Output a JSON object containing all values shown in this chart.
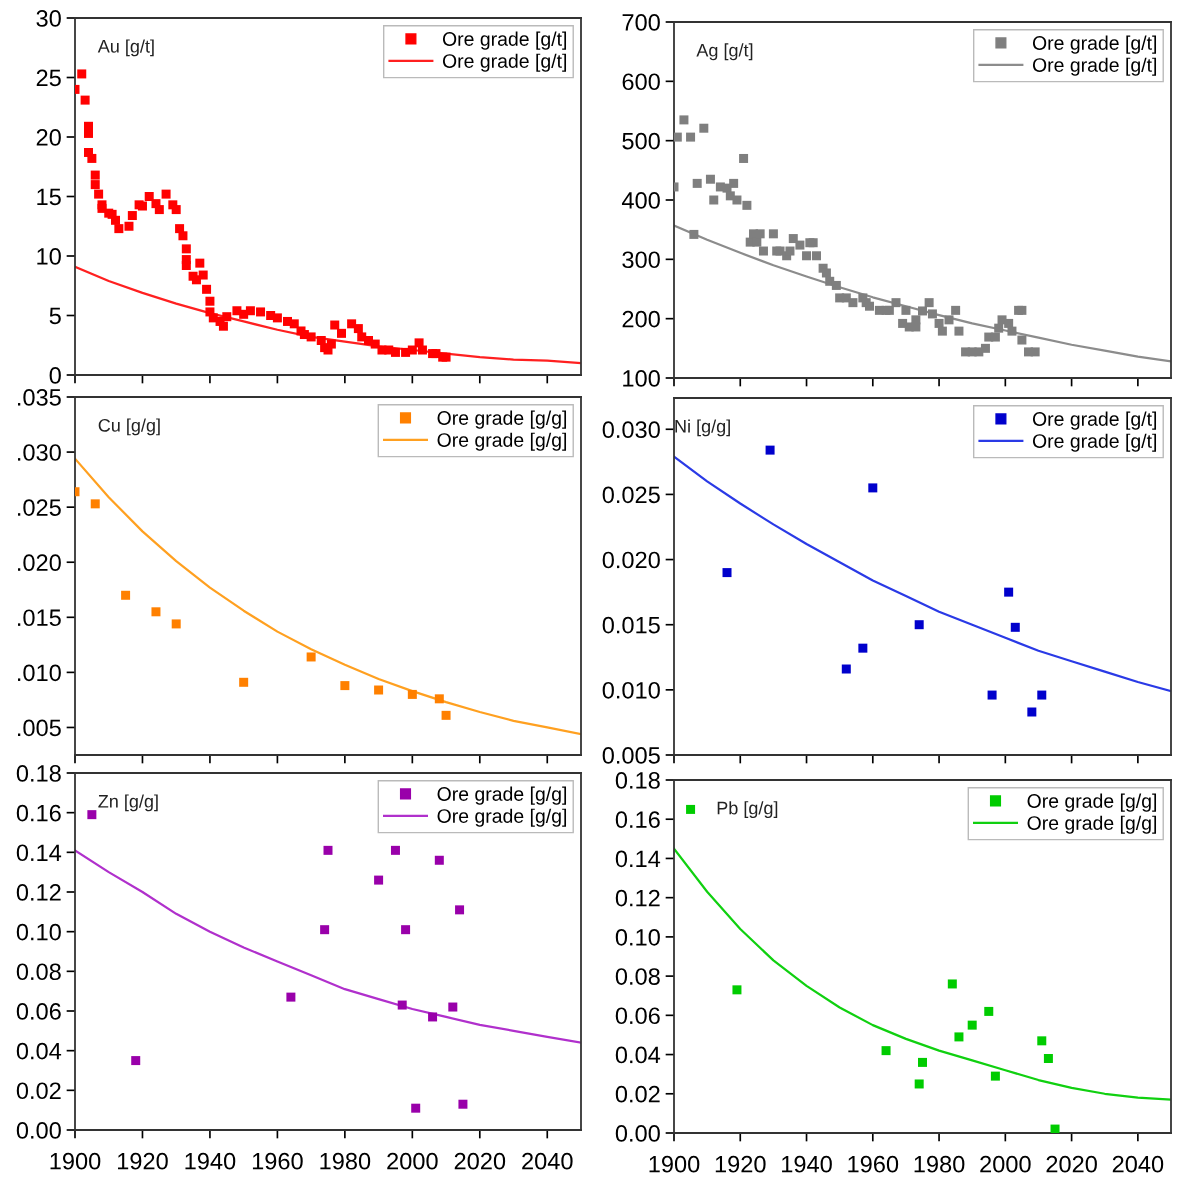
{
  "chart_data": [
    {
      "type": "scatter",
      "title": "Au [g/t]",
      "xlim": [
        1900,
        2050
      ],
      "xticks": [
        1900,
        1920,
        1940,
        1960,
        1980,
        2000,
        2020,
        2040
      ],
      "ylim": [
        0,
        30
      ],
      "yticks": [
        0,
        5,
        10,
        15,
        20,
        25,
        30
      ],
      "tick_labels": "y",
      "legend": "top right",
      "grid": false,
      "series": [
        {
          "name": "Ore grade [g/t]",
          "type": "scatter",
          "marker": "square",
          "color": "#ff0000",
          "x": [
            1900,
            1902,
            1903,
            1904,
            1904,
            1904,
            1905,
            1906,
            1906,
            1907,
            1908,
            1908,
            1910,
            1911,
            1912,
            1913,
            1916,
            1917,
            1919,
            1920,
            1922,
            1924,
            1925,
            1927,
            1929,
            1930,
            1931,
            1932,
            1933,
            1933,
            1933,
            1935,
            1936,
            1937,
            1938,
            1939,
            1940,
            1940,
            1941,
            1943,
            1944,
            1945,
            1948,
            1950,
            1952,
            1955,
            1958,
            1960,
            1963,
            1965,
            1967,
            1968,
            1970,
            1973,
            1974,
            1975,
            1976,
            1977,
            1979,
            1982,
            1984,
            1985,
            1987,
            1989,
            1991,
            1993,
            1995,
            1998,
            2000,
            2002,
            2003,
            2006,
            2007,
            2009,
            2010
          ],
          "values": [
            24.0,
            25.3,
            23.1,
            20.9,
            20.3,
            18.7,
            18.2,
            16.8,
            16.0,
            15.2,
            14.3,
            14.0,
            13.6,
            13.5,
            13.0,
            12.3,
            12.5,
            13.4,
            14.3,
            14.2,
            15.0,
            14.4,
            13.9,
            15.2,
            14.3,
            13.9,
            12.3,
            11.7,
            10.6,
            9.7,
            9.2,
            8.3,
            8.0,
            9.4,
            8.4,
            7.2,
            6.2,
            5.3,
            4.8,
            4.5,
            4.1,
            4.9,
            5.4,
            5.1,
            5.4,
            5.3,
            5.0,
            4.8,
            4.5,
            4.3,
            3.7,
            3.4,
            3.2,
            2.9,
            2.3,
            2.1,
            2.6,
            4.2,
            3.5,
            4.3,
            3.9,
            3.2,
            2.9,
            2.6,
            2.1,
            2.1,
            1.9,
            1.9,
            2.1,
            2.7,
            2.1,
            1.8,
            1.8,
            1.5,
            1.5
          ]
        },
        {
          "name": "Ore grade [g/t]",
          "type": "line",
          "line_style": "solid",
          "color": "#ff2020",
          "x": [
            1900,
            1910,
            1920,
            1930,
            1940,
            1950,
            1960,
            1970,
            1980,
            1990,
            2000,
            2010,
            2020,
            2030,
            2040,
            2050
          ],
          "values": [
            9.1,
            7.9,
            6.9,
            6.0,
            5.2,
            4.5,
            3.8,
            3.2,
            2.8,
            2.4,
            2.1,
            1.8,
            1.5,
            1.3,
            1.2,
            1.0
          ]
        }
      ]
    },
    {
      "type": "scatter",
      "title": "Ag [g/t]",
      "xlim": [
        1900,
        2050
      ],
      "xticks": [
        1900,
        1920,
        1940,
        1960,
        1980,
        2000,
        2020,
        2040
      ],
      "ylim": [
        100,
        700
      ],
      "yticks": [
        100,
        200,
        300,
        400,
        500,
        600,
        700
      ],
      "tick_labels": "y",
      "legend": "top right",
      "grid": false,
      "series": [
        {
          "name": "Ore grade [g/t]",
          "type": "scatter",
          "marker": "square",
          "color": "#7f7f7f",
          "x": [
            1900,
            1901,
            1903,
            1905,
            1906,
            1907,
            1909,
            1911,
            1912,
            1914,
            1916,
            1917,
            1918,
            1919,
            1921,
            1922,
            1923,
            1924,
            1925,
            1926,
            1927,
            1930,
            1931,
            1932,
            1934,
            1935,
            1936,
            1938,
            1940,
            1941,
            1942,
            1943,
            1945,
            1946,
            1947,
            1949,
            1950,
            1952,
            1954,
            1957,
            1958,
            1959,
            1962,
            1964,
            1965,
            1967,
            1969,
            1970,
            1971,
            1973,
            1973,
            1975,
            1977,
            1978,
            1980,
            1981,
            1983,
            1985,
            1986,
            1988,
            1990,
            1992,
            1994,
            1995,
            1997,
            1998,
            1999,
            2001,
            2002,
            2004,
            2005,
            2005,
            2007,
            2009
          ],
          "values": [
            422,
            506,
            535,
            506,
            342,
            428,
            521,
            435,
            400,
            422,
            420,
            407,
            428,
            400,
            470,
            391,
            329,
            343,
            329,
            343,
            314,
            343,
            314,
            314,
            306,
            314,
            335,
            324,
            306,
            328,
            328,
            306,
            285,
            277,
            263,
            256,
            235,
            235,
            227,
            235,
            227,
            221,
            214,
            214,
            214,
            227,
            192,
            214,
            186,
            186,
            198,
            213,
            227,
            208,
            192,
            179,
            198,
            214,
            179,
            144,
            144,
            144,
            150,
            169,
            169,
            184,
            198,
            192,
            179,
            214,
            214,
            164,
            144,
            144
          ]
        },
        {
          "name": "Ore grade [g/t]",
          "type": "line",
          "line_style": "solid",
          "color": "#8c8c8c",
          "x": [
            1900,
            1910,
            1920,
            1930,
            1940,
            1950,
            1960,
            1970,
            1980,
            1990,
            2000,
            2010,
            2020,
            2030,
            2040,
            2050
          ],
          "values": [
            357,
            333,
            311,
            290,
            271,
            253,
            236,
            221,
            206,
            192,
            180,
            168,
            156,
            146,
            136,
            128
          ]
        }
      ]
    },
    {
      "type": "scatter",
      "title": "Cu [g/g]",
      "xlim": [
        1900,
        2050
      ],
      "xticks": [
        1900,
        1920,
        1940,
        1960,
        1980,
        2000,
        2020,
        2040
      ],
      "ylim": [
        0.0025,
        0.035
      ],
      "yticks": [
        {
          "value": 0.005,
          "label": ".005"
        },
        {
          "value": 0.01,
          "label": ".010"
        },
        {
          "value": 0.015,
          "label": ".015"
        },
        {
          "value": 0.02,
          "label": ".020"
        },
        {
          "value": 0.025,
          "label": ".025"
        },
        {
          "value": 0.03,
          "label": ".030"
        },
        {
          "value": 0.035,
          "label": ".035"
        }
      ],
      "tick_labels": "y",
      "legend": "top right",
      "grid": false,
      "series": [
        {
          "name": "Ore grade [g/g]",
          "type": "scatter",
          "marker": "square",
          "color": "#ff8000",
          "x": [
            1900,
            1906,
            1915,
            1924,
            1930,
            1950,
            1970,
            1980,
            1990,
            2000,
            2008,
            2010
          ],
          "values": [
            0.0264,
            0.0253,
            0.017,
            0.0155,
            0.0144,
            0.0091,
            0.0114,
            0.0088,
            0.0084,
            0.008,
            0.0076,
            0.0061
          ]
        },
        {
          "name": "Ore grade [g/g]",
          "type": "line",
          "line_style": "solid",
          "color": "#ffa020",
          "x": [
            1900,
            1910,
            1920,
            1930,
            1940,
            1950,
            1960,
            1970,
            1980,
            1990,
            2000,
            2010,
            2020,
            2030,
            2040,
            2050
          ],
          "values": [
            0.0294,
            0.0259,
            0.0228,
            0.0201,
            0.0177,
            0.0156,
            0.0137,
            0.0121,
            0.0107,
            0.0094,
            0.0083,
            0.0073,
            0.0064,
            0.0056,
            0.005,
            0.0044
          ]
        }
      ]
    },
    {
      "type": "scatter",
      "title": "Ni [g/g]",
      "xlim": [
        1900,
        2050
      ],
      "xticks": [
        1900,
        1920,
        1940,
        1960,
        1980,
        2000,
        2020,
        2040
      ],
      "ylim": [
        0.005,
        0.0324
      ],
      "yticks": [
        {
          "value": 0.005,
          "label": "0.005"
        },
        {
          "value": 0.01,
          "label": "0.010"
        },
        {
          "value": 0.015,
          "label": "0.015"
        },
        {
          "value": 0.02,
          "label": "0.020"
        },
        {
          "value": 0.025,
          "label": "0.025"
        },
        {
          "value": 0.03,
          "label": "0.030"
        }
      ],
      "tick_labels": "y",
      "legend": "top right",
      "grid": false,
      "series": [
        {
          "name": "Ore grade [g/t]",
          "type": "scatter",
          "marker": "square",
          "color": "#0000cc",
          "x": [
            1916,
            1929,
            1952,
            1957,
            1960,
            1974,
            1996,
            2001,
            2003,
            2008,
            2011
          ],
          "values": [
            0.019,
            0.0284,
            0.0116,
            0.0132,
            0.0255,
            0.015,
            0.0096,
            0.0175,
            0.0148,
            0.0083,
            0.0096
          ]
        },
        {
          "name": "Ore grade [g/t]",
          "type": "line",
          "line_style": "solid",
          "color": "#2a3ae6",
          "x": [
            1900,
            1910,
            1920,
            1930,
            1940,
            1950,
            1960,
            1970,
            1980,
            1990,
            2000,
            2010,
            2020,
            2030,
            2040,
            2050
          ],
          "values": [
            0.0279,
            0.026,
            0.0243,
            0.0227,
            0.0212,
            0.0198,
            0.0184,
            0.0172,
            0.016,
            0.015,
            0.014,
            0.013,
            0.0122,
            0.0114,
            0.0106,
            0.0099
          ]
        }
      ]
    },
    {
      "type": "scatter",
      "title": "Zn [g/g]",
      "xlim": [
        1900,
        2050
      ],
      "xticks": [
        1900,
        1920,
        1940,
        1960,
        1980,
        2000,
        2020,
        2040
      ],
      "ylim": [
        0,
        0.18
      ],
      "yticks": [
        {
          "value": 0,
          "label": "0.00"
        },
        {
          "value": 0.02,
          "label": "0.02"
        },
        {
          "value": 0.04,
          "label": "0.04"
        },
        {
          "value": 0.06,
          "label": "0.06"
        },
        {
          "value": 0.08,
          "label": "0.08"
        },
        {
          "value": 0.1,
          "label": "0.10"
        },
        {
          "value": 0.12,
          "label": "0.12"
        },
        {
          "value": 0.14,
          "label": "0.14"
        },
        {
          "value": 0.16,
          "label": "0.16"
        },
        {
          "value": 0.18,
          "label": "0.18"
        }
      ],
      "legend": "top right",
      "grid": false,
      "series": [
        {
          "name": "Ore grade [g/g]",
          "type": "scatter",
          "marker": "square",
          "color": "#9900aa",
          "x": [
            1905,
            1918,
            1964,
            1974,
            1975,
            1990,
            1995,
            1997,
            1998,
            2001,
            2006,
            2008,
            2012,
            2014,
            2015
          ],
          "values": [
            0.159,
            0.035,
            0.067,
            0.101,
            0.141,
            0.126,
            0.141,
            0.063,
            0.101,
            0.011,
            0.057,
            0.136,
            0.062,
            0.111,
            0.013
          ]
        },
        {
          "name": "Ore grade [g/g]",
          "type": "line",
          "line_style": "solid",
          "color": "#b030cc",
          "x": [
            1900,
            1910,
            1920,
            1930,
            1940,
            1950,
            1960,
            1970,
            1980,
            1990,
            2000,
            2010,
            2020,
            2030,
            2040,
            2050
          ],
          "values": [
            0.141,
            0.13,
            0.12,
            0.109,
            0.1,
            0.092,
            0.085,
            0.078,
            0.071,
            0.066,
            0.061,
            0.057,
            0.053,
            0.05,
            0.047,
            0.044
          ]
        }
      ]
    },
    {
      "type": "scatter",
      "title": "Pb [g/g]",
      "xlim": [
        1900,
        2050
      ],
      "xticks": [
        1900,
        1920,
        1940,
        1960,
        1980,
        2000,
        2020,
        2040
      ],
      "ylim": [
        0,
        0.18
      ],
      "yticks": [
        {
          "value": 0,
          "label": "0.00"
        },
        {
          "value": 0.02,
          "label": "0.02"
        },
        {
          "value": 0.04,
          "label": "0.04"
        },
        {
          "value": 0.06,
          "label": "0.06"
        },
        {
          "value": 0.08,
          "label": "0.08"
        },
        {
          "value": 0.1,
          "label": "0.10"
        },
        {
          "value": 0.12,
          "label": "0.12"
        },
        {
          "value": 0.14,
          "label": "0.14"
        },
        {
          "value": 0.16,
          "label": "0.16"
        },
        {
          "value": 0.18,
          "label": "0.18"
        }
      ],
      "legend": "top right",
      "grid": false,
      "series": [
        {
          "name": "Ore grade [g/g]",
          "type": "scatter",
          "marker": "square",
          "color": "#00cc00",
          "x": [
            1905,
            1919,
            1964,
            1974,
            1975,
            1984,
            1986,
            1990,
            1995,
            1997,
            2011,
            2013,
            2015
          ],
          "values": [
            0.165,
            0.073,
            0.042,
            0.025,
            0.036,
            0.076,
            0.049,
            0.055,
            0.062,
            0.029,
            0.047,
            0.038,
            0.002
          ]
        },
        {
          "name": "Ore grade [g/g]",
          "type": "line",
          "line_style": "solid",
          "color": "#10d010",
          "x": [
            1900,
            1910,
            1920,
            1930,
            1940,
            1950,
            1960,
            1970,
            1980,
            1990,
            2000,
            2010,
            2020,
            2030,
            2040,
            2050
          ],
          "values": [
            0.145,
            0.123,
            0.104,
            0.088,
            0.075,
            0.064,
            0.055,
            0.048,
            0.042,
            0.037,
            0.032,
            0.027,
            0.023,
            0.02,
            0.018,
            0.017
          ]
        }
      ]
    }
  ]
}
